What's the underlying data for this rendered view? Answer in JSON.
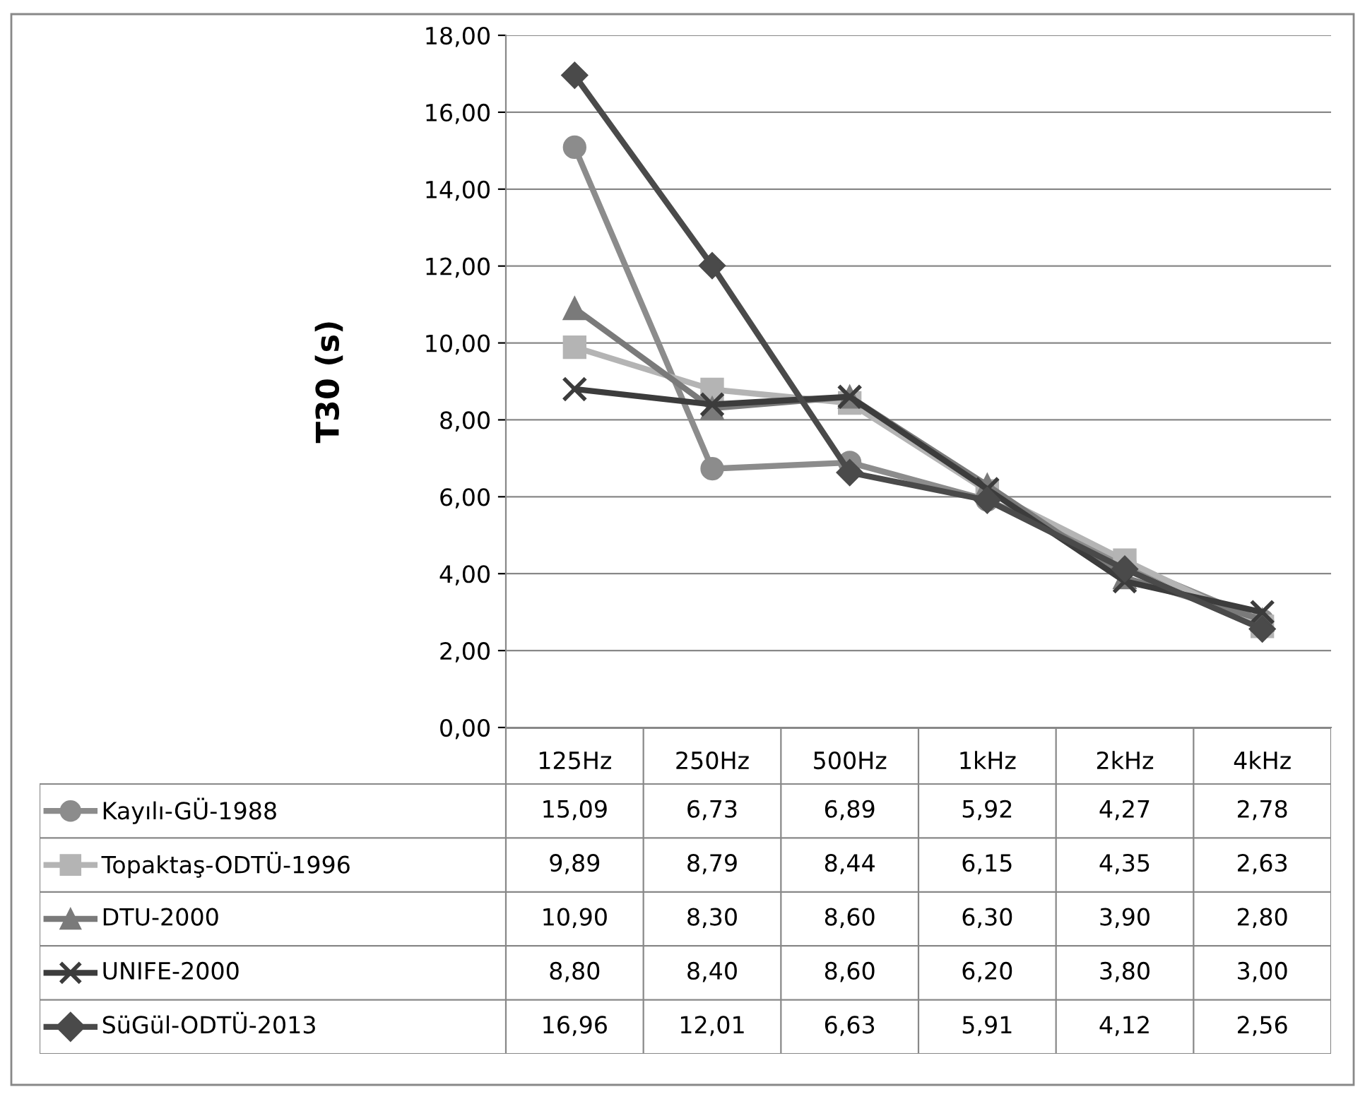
{
  "chart_data": {
    "type": "line",
    "ylabel": "T30 (s)",
    "categories": [
      "125Hz",
      "250Hz",
      "500Hz",
      "1kHz",
      "2kHz",
      "4kHz"
    ],
    "series": [
      {
        "name": "Kayılı-GÜ-1988",
        "color": "#8c8c8c",
        "marker": "circle",
        "values": [
          15.09,
          6.73,
          6.89,
          5.92,
          4.27,
          2.78
        ],
        "value_labels": [
          "15,09",
          "6,73",
          "6,89",
          "5,92",
          "4,27",
          "2,78"
        ]
      },
      {
        "name": "Topaktaş-ODTÜ-1996",
        "color": "#b4b4b4",
        "marker": "square",
        "values": [
          9.89,
          8.79,
          8.44,
          6.15,
          4.35,
          2.63
        ],
        "value_labels": [
          "9,89",
          "8,79",
          "8,44",
          "6,15",
          "4,35",
          "2,63"
        ]
      },
      {
        "name": "DTU-2000",
        "color": "#7a7a7a",
        "marker": "triangle",
        "values": [
          10.9,
          8.3,
          8.6,
          6.3,
          3.9,
          2.8
        ],
        "value_labels": [
          "10,90",
          "8,30",
          "8,60",
          "6,30",
          "3,90",
          "2,80"
        ]
      },
      {
        "name": "UNIFE-2000",
        "color": "#3c3c3c",
        "marker": "cross",
        "values": [
          8.8,
          8.4,
          8.6,
          6.2,
          3.8,
          3.0
        ],
        "value_labels": [
          "8,80",
          "8,40",
          "8,60",
          "6,20",
          "3,80",
          "3,00"
        ]
      },
      {
        "name": "SüGül-ODTÜ-2013",
        "color": "#4a4a4a",
        "marker": "diamond",
        "values": [
          16.96,
          12.01,
          6.63,
          5.91,
          4.12,
          2.56
        ],
        "value_labels": [
          "16,96",
          "12,01",
          "6,63",
          "5,91",
          "4,12",
          "2,56"
        ]
      }
    ],
    "ylim": [
      0,
      18
    ],
    "yticks": [
      {
        "value": 0,
        "label": "0,00"
      },
      {
        "value": 2,
        "label": "2,00"
      },
      {
        "value": 4,
        "label": "4,00"
      },
      {
        "value": 6,
        "label": "6,00"
      },
      {
        "value": 8,
        "label": "8,00"
      },
      {
        "value": 10,
        "label": "10,00"
      },
      {
        "value": 12,
        "label": "12,00"
      },
      {
        "value": 14,
        "label": "14,00"
      },
      {
        "value": 16,
        "label": "16,00"
      },
      {
        "value": 18,
        "label": "18,00"
      }
    ],
    "grid": "y",
    "legend": "bottom",
    "line_style": "solid"
  }
}
